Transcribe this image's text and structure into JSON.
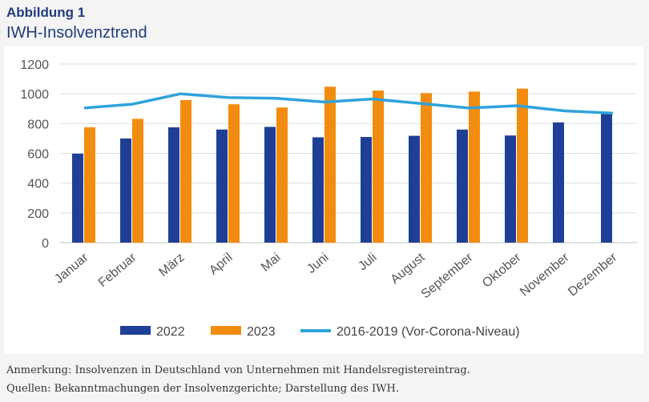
{
  "figure": {
    "label": "Abbildung 1",
    "title": "IWH-Insolvenztrend"
  },
  "notes": {
    "remark": "Anmerkung: Insolvenzen in Deutschland von Unternehmen mit Handelsregistereintrag.",
    "sources": "Quellen: Bekanntmachungen der Insolvenzgerichte; Darstellung des IWH."
  },
  "chart_data": {
    "type": "bar",
    "categories": [
      "Januar",
      "Februar",
      "März",
      "April",
      "Mai",
      "Juni",
      "Juli",
      "August",
      "September",
      "Oktober",
      "November",
      "Dezember"
    ],
    "series": [
      {
        "name": "2022",
        "type": "bar",
        "color": "#1f3f96",
        "values": [
          598,
          700,
          775,
          760,
          778,
          708,
          710,
          718,
          760,
          720,
          808,
          870
        ]
      },
      {
        "name": "2023",
        "type": "bar",
        "color": "#f28c0f",
        "values": [
          775,
          832,
          958,
          930,
          908,
          1048,
          1022,
          1005,
          1015,
          1035,
          null,
          null
        ]
      },
      {
        "name": "2016-2019 (Vor-Corona-Niveau)",
        "type": "line",
        "color": "#2fa3dc",
        "values": [
          905,
          930,
          1000,
          975,
          970,
          945,
          965,
          935,
          905,
          920,
          885,
          870
        ]
      }
    ],
    "yticks": [
      "0",
      "200",
      "400",
      "600",
      "800",
      "1000",
      "1200"
    ],
    "ylim": [
      0,
      1200
    ],
    "grid": true,
    "legend": "bottom"
  }
}
